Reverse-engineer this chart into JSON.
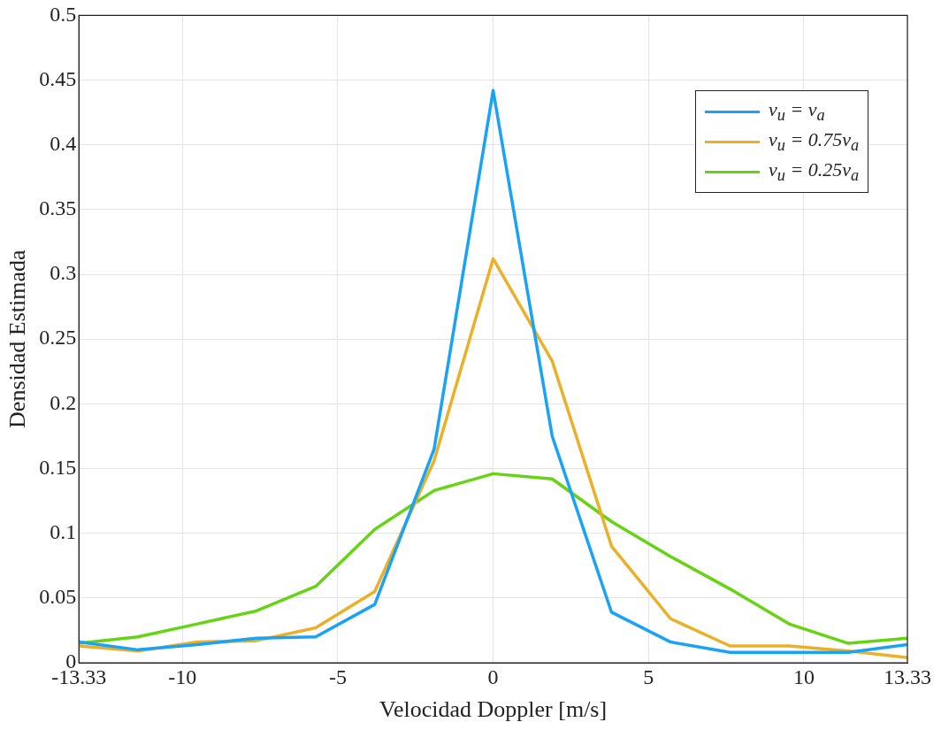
{
  "chart_data": {
    "type": "line",
    "xlabel": "Velocidad Doppler [m/s]",
    "ylabel": "Densidad Estimada",
    "x": [
      -13.33,
      -11.43,
      -9.52,
      -7.62,
      -5.71,
      -3.81,
      -1.9,
      0,
      1.9,
      3.81,
      5.71,
      7.62,
      9.52,
      11.43,
      13.33
    ],
    "series": [
      {
        "name": "v$_{u}$ = v$_{a}$",
        "color": "#1aa3f5",
        "values": [
          0.016,
          0.01,
          0.014,
          0.019,
          0.02,
          0.045,
          0.165,
          0.442,
          0.175,
          0.039,
          0.016,
          0.008,
          0.008,
          0.008,
          0.014
        ]
      },
      {
        "name": "v$_{u}$ = 0.75v$_{a}$",
        "color": "#ebb028",
        "values": [
          0.013,
          0.009,
          0.016,
          0.017,
          0.027,
          0.055,
          0.156,
          0.312,
          0.233,
          0.09,
          0.034,
          0.013,
          0.013,
          0.009,
          0.004
        ]
      },
      {
        "name": "v$_{u}$ = 0.25v$_{a}$",
        "color": "#66d414",
        "values": [
          0.015,
          0.02,
          0.03,
          0.04,
          0.059,
          0.103,
          0.133,
          0.146,
          0.142,
          0.109,
          0.082,
          0.057,
          0.03,
          0.015,
          0.019
        ]
      }
    ],
    "xlim": [
      -13.33,
      13.33
    ],
    "xticks": [
      -13.33,
      -10,
      -5,
      0,
      5,
      10,
      13.33
    ],
    "ylim": [
      0,
      0.5
    ],
    "yticks": [
      0,
      0.05,
      0.1,
      0.15,
      0.2,
      0.25,
      0.3,
      0.35,
      0.4,
      0.45,
      0.5
    ],
    "grid": true,
    "legend": "top right",
    "marker": "none",
    "line_style": "solid"
  }
}
